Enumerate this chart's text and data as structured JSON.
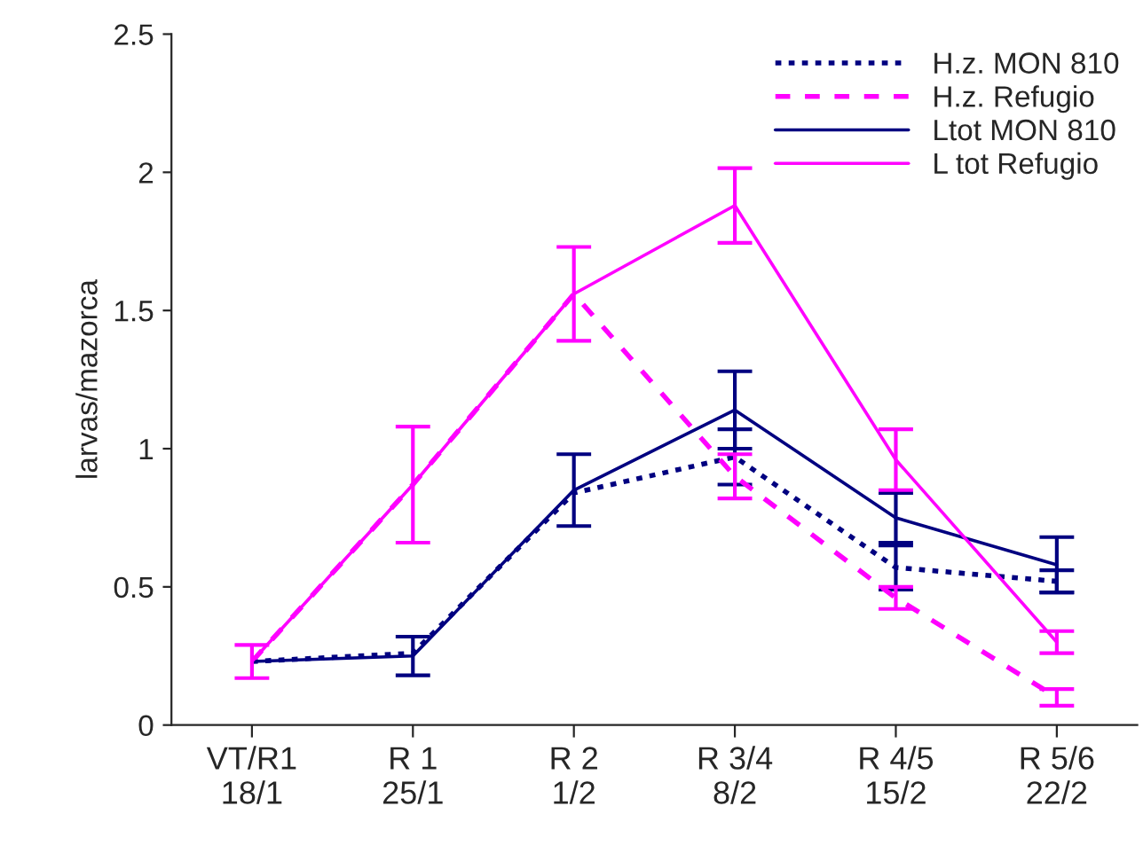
{
  "chart_data": {
    "type": "line",
    "ylabel": "larvas/mazorca",
    "categories": [
      "VT/R1\n18/1",
      "R 1\n25/1",
      "R 2\n1/2",
      "R 3/4\n8/2",
      "R 4/5\n15/2",
      "R 5/6\n22/2"
    ],
    "series": [
      {
        "name": "H.z. MON 810",
        "color": "#000080",
        "line_style": "dotted",
        "values": [
          0.23,
          0.26,
          0.84,
          0.97,
          0.57,
          0.52
        ],
        "errors": [
          null,
          null,
          null,
          0.1,
          0.08,
          0.04
        ]
      },
      {
        "name": "H.z. Refugio",
        "color": "#ff00ff",
        "line_style": "dashed",
        "values": [
          0.23,
          0.87,
          1.56,
          0.9,
          0.46,
          0.1
        ],
        "errors": [
          null,
          null,
          null,
          0.08,
          0.04,
          0.03
        ]
      },
      {
        "name": "Ltot MON 810",
        "color": "#000080",
        "line_style": "solid",
        "values": [
          0.23,
          0.25,
          0.85,
          1.14,
          0.75,
          0.58
        ],
        "errors": [
          null,
          0.07,
          0.13,
          0.14,
          0.09,
          0.1
        ]
      },
      {
        "name": "L tot Refugio",
        "color": "#ff00ff",
        "line_style": "solid",
        "values": [
          0.23,
          0.87,
          1.56,
          1.88,
          0.96,
          0.3
        ],
        "errors": [
          0.06,
          0.21,
          0.17,
          0.135,
          0.11,
          0.04
        ]
      }
    ],
    "ylim": [
      0,
      2.5
    ],
    "yticks": [
      0,
      0.5,
      1,
      1.5,
      2,
      2.5
    ],
    "grid": false,
    "legend": "top right",
    "marker": "none"
  }
}
